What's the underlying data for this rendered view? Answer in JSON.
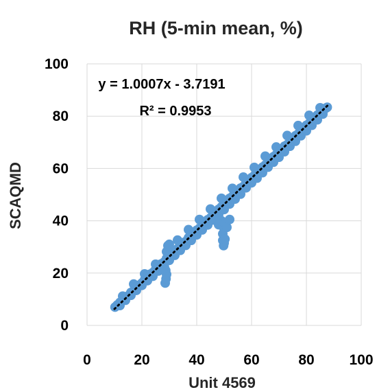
{
  "chart_data": {
    "type": "scatter",
    "title": "RH (5-min mean, %)",
    "xlabel": "Unit 4569",
    "ylabel": "SCAQMD",
    "xlim": [
      0,
      100
    ],
    "ylim": [
      0,
      100
    ],
    "x_ticks": [
      0,
      20,
      40,
      60,
      80,
      100
    ],
    "y_ticks": [
      0,
      20,
      40,
      60,
      80,
      100
    ],
    "x_tick_labels": [
      "0",
      "20",
      "40",
      "60",
      "80",
      "100"
    ],
    "y_tick_labels": [
      "0",
      "20",
      "40",
      "60",
      "80",
      "100"
    ],
    "grid": true,
    "legend": "none",
    "series": [
      {
        "marker_color": "#5b9bd5",
        "points": [
          [
            10.2,
            7.0
          ],
          [
            11,
            7.8
          ],
          [
            12,
            8.8
          ],
          [
            13,
            9.5
          ],
          [
            14,
            10.8
          ],
          [
            15,
            11.3
          ],
          [
            16,
            12.6
          ],
          [
            17,
            13.2
          ],
          [
            18,
            14.5
          ],
          [
            19,
            15.4
          ],
          [
            20,
            16.2
          ],
          [
            21,
            17.5
          ],
          [
            22,
            18.1
          ],
          [
            23,
            19.6
          ],
          [
            24,
            20.2
          ],
          [
            25,
            21.4
          ],
          [
            26,
            22.1
          ],
          [
            27,
            23.5
          ],
          [
            28,
            24.1
          ],
          [
            29,
            25.6
          ],
          [
            30,
            26.3
          ],
          [
            31,
            27.2
          ],
          [
            32,
            28.5
          ],
          [
            33,
            29.3
          ],
          [
            34,
            30.2
          ],
          [
            35,
            31.6
          ],
          [
            36,
            32.1
          ],
          [
            37,
            33.5
          ],
          [
            38,
            34.3
          ],
          [
            39,
            35.2
          ],
          [
            40,
            36.4
          ],
          [
            41,
            37.1
          ],
          [
            42,
            38.5
          ],
          [
            43,
            39.2
          ],
          [
            44,
            40.4
          ],
          [
            45,
            41.1
          ],
          [
            46,
            42.6
          ],
          [
            47,
            43.2
          ],
          [
            48,
            44.4
          ],
          [
            49,
            45.3
          ],
          [
            50,
            46.5
          ],
          [
            51,
            47.2
          ],
          [
            52,
            48.6
          ],
          [
            53,
            49.3
          ],
          [
            54,
            50.4
          ],
          [
            55,
            51.2
          ],
          [
            56,
            52.5
          ],
          [
            57,
            53.1
          ],
          [
            58,
            54.6
          ],
          [
            59,
            55.2
          ],
          [
            60,
            56.5
          ],
          [
            61,
            57.3
          ],
          [
            62,
            58.4
          ],
          [
            63,
            59.2
          ],
          [
            64,
            60.5
          ],
          [
            65,
            61.3
          ],
          [
            66,
            62.4
          ],
          [
            67,
            63.1
          ],
          [
            68,
            64.5
          ],
          [
            69,
            65.3
          ],
          [
            70,
            66.4
          ],
          [
            71,
            67.2
          ],
          [
            72,
            68.5
          ],
          [
            73,
            69.1
          ],
          [
            74,
            70.4
          ],
          [
            75,
            71.3
          ],
          [
            76,
            72.5
          ],
          [
            77,
            73.2
          ],
          [
            78,
            74.4
          ],
          [
            79,
            75.1
          ],
          [
            80,
            76.5
          ],
          [
            81,
            77.2
          ],
          [
            82,
            78.3
          ],
          [
            83,
            79.1
          ],
          [
            84,
            80.4
          ],
          [
            85,
            81.2
          ],
          [
            86,
            82.3
          ],
          [
            87,
            83.0
          ],
          [
            87.6,
            83.4
          ],
          [
            12,
            7.6
          ],
          [
            14,
            9.6
          ],
          [
            16,
            11.5
          ],
          [
            18,
            13.4
          ],
          [
            20,
            15.3
          ],
          [
            22,
            17.1
          ],
          [
            24,
            18.8
          ],
          [
            26,
            20.8
          ],
          [
            28,
            22.6
          ],
          [
            30,
            24.9
          ],
          [
            32,
            26.8
          ],
          [
            34,
            28.7
          ],
          [
            36,
            30.6
          ],
          [
            38,
            32.5
          ],
          [
            40,
            34.6
          ],
          [
            42,
            36.5
          ],
          [
            44,
            38.4
          ],
          [
            46,
            40.3
          ],
          [
            48,
            42.4
          ],
          [
            50,
            44.3
          ],
          [
            52,
            46.4
          ],
          [
            54,
            48.3
          ],
          [
            56,
            50.2
          ],
          [
            58,
            52.6
          ],
          [
            60,
            54.5
          ],
          [
            62,
            56.3
          ],
          [
            64,
            58.4
          ],
          [
            66,
            60.5
          ],
          [
            68,
            62.4
          ],
          [
            70,
            64.3
          ],
          [
            72,
            66.4
          ],
          [
            74,
            68.5
          ],
          [
            76,
            70.4
          ],
          [
            78,
            72.5
          ],
          [
            80,
            74.4
          ],
          [
            82,
            76.5
          ],
          [
            84,
            78.6
          ],
          [
            86,
            80.8
          ],
          [
            13,
            11.2
          ],
          [
            17,
            15.8
          ],
          [
            21,
            19.7
          ],
          [
            25,
            23.4
          ],
          [
            29,
            28.2
          ],
          [
            29.5,
            30.5
          ],
          [
            30,
            31.0
          ],
          [
            33,
            32.6
          ],
          [
            37,
            36.6
          ],
          [
            41,
            40.5
          ],
          [
            45,
            44.5
          ],
          [
            49,
            48.6
          ],
          [
            53,
            52.4
          ],
          [
            57,
            56.7
          ],
          [
            61,
            60.4
          ],
          [
            65,
            64.7
          ],
          [
            69,
            68.2
          ],
          [
            73,
            72.6
          ],
          [
            77,
            76.4
          ],
          [
            81,
            80.3
          ],
          [
            85,
            83.2
          ],
          [
            28.5,
            16.2
          ],
          [
            28.8,
            17.8
          ],
          [
            29.0,
            19.5
          ],
          [
            28.7,
            21.0
          ],
          [
            28.2,
            22.5
          ],
          [
            27.5,
            21.5
          ],
          [
            48,
            38.5
          ],
          [
            48.5,
            39.0
          ],
          [
            49,
            40.0
          ],
          [
            49.5,
            38.0
          ],
          [
            50,
            37.0
          ],
          [
            50.5,
            39.0
          ],
          [
            49.5,
            35.0
          ],
          [
            49.5,
            32.5
          ],
          [
            49.8,
            30.5
          ],
          [
            50.0,
            31.5
          ],
          [
            50.3,
            33.0
          ],
          [
            51,
            37.5
          ],
          [
            52,
            40.5
          ]
        ]
      }
    ],
    "trendline": {
      "style": "dotted",
      "color": "#000000",
      "slope": 1.0007,
      "intercept": -3.7191,
      "x_range": [
        10,
        88
      ],
      "equation_label": "y = 1.0007x - 3.7191",
      "r2_label": "R² = 0.9953"
    }
  }
}
